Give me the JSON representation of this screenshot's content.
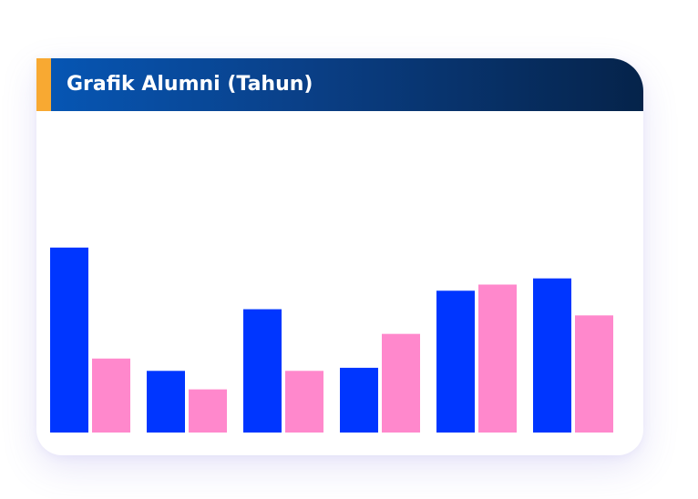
{
  "card": {
    "title": "Grafik Alumni (Tahun)"
  },
  "colors": {
    "header_start": "#0657b6",
    "header_end": "#05234a",
    "accent": "#f8a932",
    "series_1": "#0036ff",
    "series_2": "#ff88cc"
  },
  "chart_data": {
    "type": "bar",
    "title": "Grafik Alumni (Tahun)",
    "categories": [
      "",
      "",
      "",
      "",
      "",
      ""
    ],
    "series": [
      {
        "values": [
          60,
          20,
          40,
          21,
          46,
          50
        ]
      },
      {
        "values": [
          24,
          14,
          20,
          32,
          48,
          38
        ]
      }
    ],
    "ylim": [
      0,
      96
    ],
    "grid": false,
    "legend": "none"
  }
}
